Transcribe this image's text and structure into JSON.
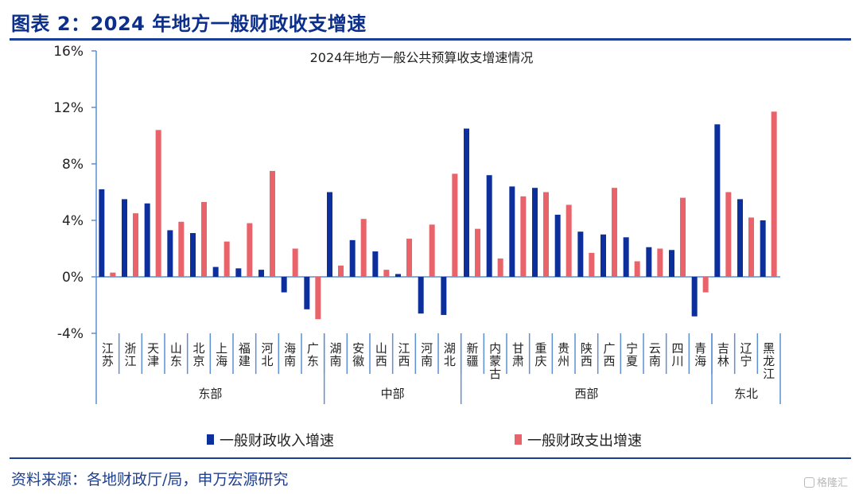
{
  "header": {
    "title": "图表 2：2024 年地方一般财政收支增速"
  },
  "footer": {
    "source": "资料来源：各地财政厅/局，申万宏源研究",
    "watermark": "格隆汇"
  },
  "colors": {
    "income": "#0d2f9c",
    "expense": "#e8646a",
    "axis": "#5b8fd6",
    "rule": "#1a3f97"
  },
  "chart_data": {
    "type": "bar",
    "title": "2024年地方一般公共预算收支增速情况",
    "ylim": [
      -4,
      16
    ],
    "yticks": [
      -4,
      0,
      4,
      8,
      12,
      16
    ],
    "ytick_labels": [
      "-4%",
      "0%",
      "4%",
      "8%",
      "12%",
      "16%"
    ],
    "legend_position": "bottom",
    "categories": [
      "江苏",
      "浙江",
      "天津",
      "山东",
      "北京",
      "上海",
      "福建",
      "河北",
      "海南",
      "广东",
      "湖南",
      "安徽",
      "山西",
      "江西",
      "河南",
      "湖北",
      "新疆",
      "内蒙古",
      "甘肃",
      "重庆",
      "贵州",
      "陕西",
      "广西",
      "宁夏",
      "云南",
      "四川",
      "青海",
      "吉林",
      "辽宁",
      "黑龙江"
    ],
    "groups": [
      {
        "name": "东部",
        "count": 10
      },
      {
        "name": "中部",
        "count": 6
      },
      {
        "name": "西部",
        "count": 11
      },
      {
        "name": "东北",
        "count": 3
      }
    ],
    "series": [
      {
        "name": "一般财政收入增速",
        "values": [
          6.2,
          5.5,
          5.2,
          3.3,
          3.1,
          0.7,
          0.6,
          0.5,
          -1.1,
          -2.3,
          6.0,
          2.6,
          1.8,
          0.2,
          -2.6,
          -2.7,
          10.5,
          7.2,
          6.4,
          6.3,
          4.4,
          3.2,
          3.0,
          2.8,
          2.1,
          1.9,
          -2.8,
          10.8,
          5.5,
          4.0
        ]
      },
      {
        "name": "一般财政支出增速",
        "values": [
          0.3,
          4.5,
          10.4,
          3.9,
          5.3,
          2.5,
          3.8,
          7.5,
          2.0,
          -3.0,
          0.8,
          4.1,
          0.5,
          2.7,
          3.7,
          7.3,
          3.4,
          1.3,
          5.7,
          6.0,
          5.1,
          1.7,
          6.3,
          1.1,
          2.0,
          5.6,
          -1.1,
          6.0,
          4.2,
          11.7
        ]
      }
    ]
  }
}
